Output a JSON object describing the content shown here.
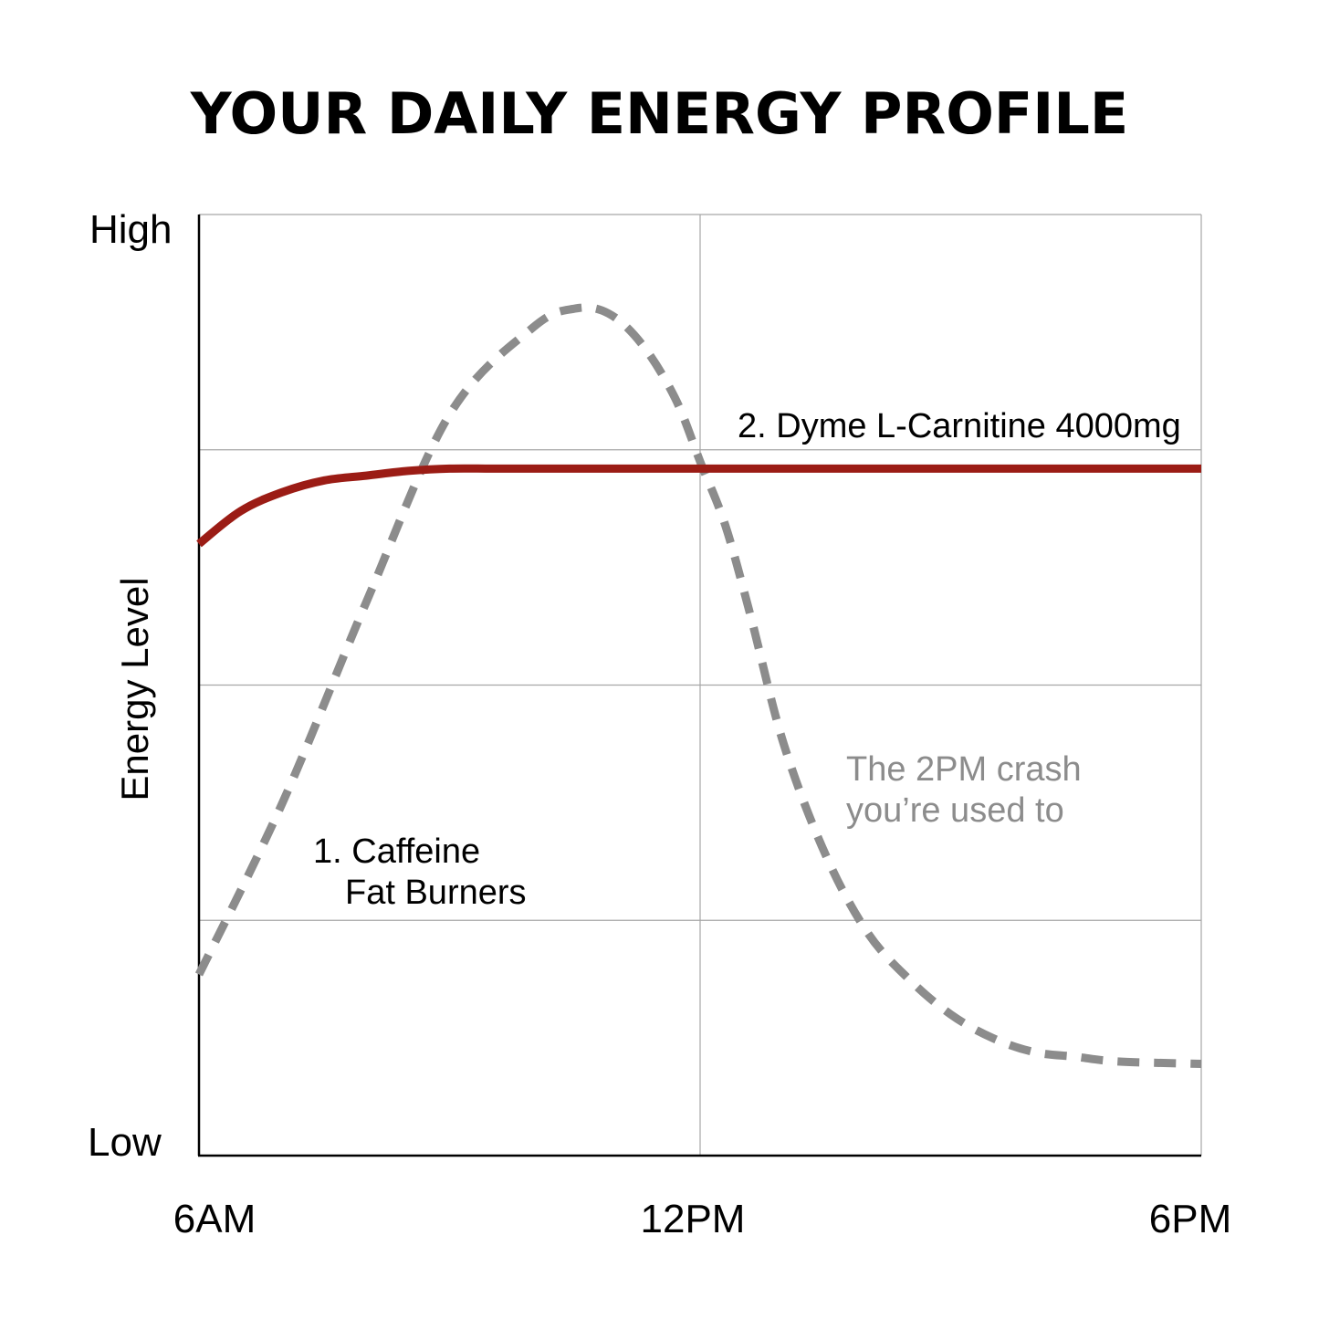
{
  "title": "YOUR DAILY ENERGY PROFILE",
  "colors": {
    "carnitine": "#9b1c15",
    "caffeine": "#8c8c8c",
    "crash_text": "#8c8c8c",
    "grid": "#a6a6a6",
    "axis": "#000000"
  },
  "chart_data": {
    "type": "line",
    "title": "YOUR DAILY ENERGY PROFILE",
    "xlabel": "",
    "ylabel": "Energy Level",
    "x_ticks": [
      {
        "label": "6AM",
        "hour": 6
      },
      {
        "label": "12PM",
        "hour": 12
      },
      {
        "label": "6PM",
        "hour": 18
      }
    ],
    "y_ticks": [
      {
        "label": "Low",
        "value": 0
      },
      {
        "label": "High",
        "value": 4
      }
    ],
    "xlim": [
      6,
      18
    ],
    "ylim": [
      0,
      4
    ],
    "grid": true,
    "gridlines_y": [
      1,
      2,
      3
    ],
    "gridlines_x": [
      12,
      18
    ],
    "series": [
      {
        "key": "caffeine",
        "style": "dashed",
        "x": [
          6.0,
          7.0,
          8.0,
          9.0,
          10.0,
          10.5,
          10.9,
          11.3,
          11.7,
          12.0,
          12.3,
          12.6,
          13.0,
          13.5,
          14.0,
          14.5,
          15.0,
          15.5,
          16.0,
          16.5,
          17.0,
          18.0
        ],
        "y": [
          0.77,
          1.5,
          2.35,
          3.15,
          3.52,
          3.6,
          3.58,
          3.45,
          3.22,
          2.95,
          2.68,
          2.3,
          1.75,
          1.28,
          0.95,
          0.75,
          0.6,
          0.5,
          0.44,
          0.42,
          0.4,
          0.39
        ]
      },
      {
        "key": "carnitine",
        "style": "solid",
        "x": [
          6.0,
          6.5,
          7.0,
          7.5,
          8.0,
          8.5,
          9.0,
          9.5,
          10.0,
          11.0,
          12.0,
          13.0,
          14.0,
          15.0,
          16.0,
          17.0,
          18.0
        ],
        "y": [
          2.6,
          2.74,
          2.82,
          2.87,
          2.89,
          2.91,
          2.92,
          2.92,
          2.92,
          2.92,
          2.92,
          2.92,
          2.92,
          2.92,
          2.92,
          2.92,
          2.92
        ]
      }
    ],
    "annotations": {
      "carnitine": "2. Dyme L-Carnitine 4000mg",
      "caffeine_line1": "1. Caffeine",
      "caffeine_line2": "Fat Burners",
      "crash_line1": "The 2PM crash",
      "crash_line2": "you’re used to"
    }
  }
}
